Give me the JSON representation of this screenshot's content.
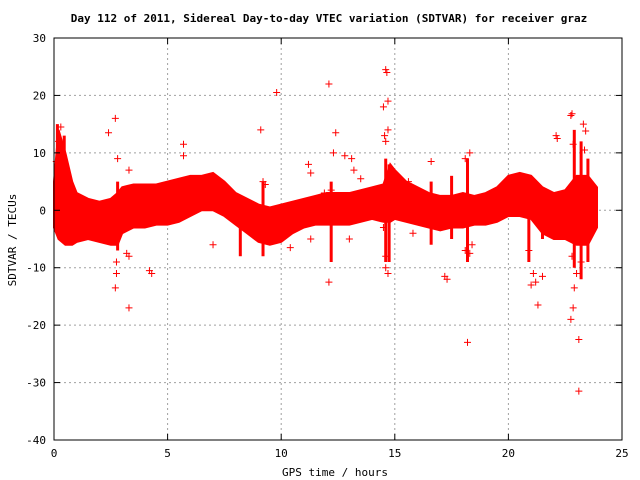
{
  "chart_data": {
    "type": "scatter",
    "title": "Day 112 of 2011, Sidereal Day-to-day VTEC variation (SDTVAR) for receiver graz",
    "xlabel": "GPS time / hours",
    "ylabel": "SDTVAR / TECUs",
    "xlim": [
      0,
      25
    ],
    "ylim": [
      -40,
      30
    ],
    "xticks": [
      0,
      5,
      10,
      15,
      20,
      25
    ],
    "yticks": [
      -40,
      -30,
      -20,
      -10,
      0,
      10,
      20,
      30
    ],
    "xtick_labels": [
      "0",
      "5",
      "10",
      "15",
      "20",
      "25"
    ],
    "ytick_labels": [
      "-40",
      "-30",
      "-20",
      "-10",
      "0",
      "10",
      "20",
      "30"
    ],
    "grid": true,
    "marker": "+",
    "color": "#ff0000",
    "band": {
      "x": [
        0.0,
        0.2,
        0.5,
        0.8,
        1.0,
        1.5,
        2.0,
        2.5,
        2.8,
        3.0,
        3.5,
        4.0,
        4.5,
        5.0,
        5.5,
        6.0,
        6.5,
        7.0,
        7.5,
        8.0,
        8.5,
        9.0,
        9.5,
        10.0,
        10.5,
        11.0,
        11.5,
        12.0,
        12.5,
        13.0,
        13.5,
        14.0,
        14.5,
        14.8,
        15.0,
        15.5,
        16.0,
        16.5,
        17.0,
        17.5,
        18.0,
        18.5,
        19.0,
        19.5,
        20.0,
        20.5,
        21.0,
        21.5,
        22.0,
        22.5,
        23.0,
        23.5,
        23.9
      ],
      "upper": [
        5,
        14,
        10,
        5,
        3,
        2,
        1.5,
        2,
        3,
        4,
        4.5,
        4.5,
        4.5,
        5,
        5.5,
        6,
        6,
        6.5,
        5,
        3,
        2,
        1,
        0.5,
        1,
        1.5,
        2,
        2.5,
        3,
        3,
        3,
        3.5,
        4,
        4.5,
        8,
        7,
        5,
        4,
        3,
        2.5,
        2.5,
        3,
        2.5,
        3,
        4,
        6,
        6.5,
        6,
        4,
        3,
        3.5,
        6,
        6,
        4
      ],
      "lower": [
        -3,
        -5,
        -6,
        -6,
        -5.5,
        -5,
        -5.5,
        -6,
        -6,
        -4,
        -3,
        -3,
        -2.5,
        -2.5,
        -2,
        -1,
        0,
        0,
        -1,
        -2.5,
        -4,
        -5.5,
        -6,
        -5.5,
        -4,
        -3,
        -2.5,
        -2.5,
        -2.5,
        -2.5,
        -2,
        -1.5,
        -2,
        -2,
        -1.5,
        -2,
        -2.5,
        -3,
        -3.5,
        -3,
        -3,
        -2.5,
        -2.5,
        -2,
        -1,
        -1,
        -1.5,
        -4,
        -5,
        -5,
        -6,
        -6,
        -3
      ]
    },
    "spikes": [
      {
        "x": 0.15,
        "top": 15,
        "bottom": -3
      },
      {
        "x": 0.45,
        "top": 13,
        "bottom": -4
      },
      {
        "x": 2.8,
        "top": 5,
        "bottom": -7
      },
      {
        "x": 8.2,
        "top": 2,
        "bottom": -8
      },
      {
        "x": 9.2,
        "top": 5,
        "bottom": -8
      },
      {
        "x": 12.2,
        "top": 5,
        "bottom": -9
      },
      {
        "x": 14.6,
        "top": 9,
        "bottom": -9
      },
      {
        "x": 14.75,
        "top": 8,
        "bottom": -9
      },
      {
        "x": 16.6,
        "top": 5,
        "bottom": -6
      },
      {
        "x": 17.5,
        "top": 6,
        "bottom": -5
      },
      {
        "x": 18.2,
        "top": 9,
        "bottom": -9
      },
      {
        "x": 20.9,
        "top": 5,
        "bottom": -9
      },
      {
        "x": 21.5,
        "top": 3,
        "bottom": -5
      },
      {
        "x": 22.9,
        "top": 14,
        "bottom": -10
      },
      {
        "x": 23.2,
        "top": 12,
        "bottom": -12
      },
      {
        "x": 23.5,
        "top": 9,
        "bottom": -9
      }
    ],
    "outliers": [
      [
        0.1,
        8.5
      ],
      [
        0.2,
        12
      ],
      [
        0.3,
        14.5
      ],
      [
        2.4,
        13.5
      ],
      [
        2.7,
        16
      ],
      [
        2.8,
        9
      ],
      [
        2.75,
        -9
      ],
      [
        2.75,
        -11
      ],
      [
        2.7,
        -13.5
      ],
      [
        3.3,
        7
      ],
      [
        3.2,
        -7.5
      ],
      [
        3.3,
        -8
      ],
      [
        3.3,
        -17
      ],
      [
        4.2,
        -10.5
      ],
      [
        4.3,
        -11
      ],
      [
        5.7,
        11.5
      ],
      [
        5.7,
        9.5
      ],
      [
        7.0,
        -6
      ],
      [
        9.1,
        14
      ],
      [
        9.2,
        5
      ],
      [
        9.3,
        4.5
      ],
      [
        9.8,
        20.5
      ],
      [
        10.4,
        -6.5
      ],
      [
        11.2,
        8
      ],
      [
        11.3,
        6.5
      ],
      [
        11.3,
        -5
      ],
      [
        11.9,
        3
      ],
      [
        12.1,
        22
      ],
      [
        12.2,
        3.5
      ],
      [
        12.3,
        10
      ],
      [
        12.4,
        13.5
      ],
      [
        12.1,
        -12.5
      ],
      [
        12.8,
        9.5
      ],
      [
        13.1,
        9
      ],
      [
        13.2,
        7
      ],
      [
        13.0,
        -5
      ],
      [
        13.5,
        5.5
      ],
      [
        13.8,
        2
      ],
      [
        14.5,
        18
      ],
      [
        14.6,
        24.5
      ],
      [
        14.65,
        24
      ],
      [
        14.7,
        19
      ],
      [
        14.55,
        13
      ],
      [
        14.6,
        12
      ],
      [
        14.7,
        14
      ],
      [
        14.5,
        -3
      ],
      [
        14.6,
        -10
      ],
      [
        14.7,
        -11
      ],
      [
        14.6,
        -8
      ],
      [
        15.6,
        5
      ],
      [
        15.8,
        -4
      ],
      [
        16.6,
        8.5
      ],
      [
        17.2,
        -11.5
      ],
      [
        17.3,
        -12
      ],
      [
        17.9,
        1
      ],
      [
        18.1,
        9
      ],
      [
        18.3,
        10
      ],
      [
        18.1,
        -7
      ],
      [
        18.2,
        -23
      ],
      [
        18.3,
        -7.5
      ],
      [
        18.4,
        -6
      ],
      [
        20.9,
        -7
      ],
      [
        21.0,
        -13
      ],
      [
        21.1,
        -11
      ],
      [
        21.2,
        -12.5
      ],
      [
        21.3,
        -16.5
      ],
      [
        21.5,
        -11.5
      ],
      [
        22.1,
        13
      ],
      [
        22.15,
        12.5
      ],
      [
        22.75,
        16.5
      ],
      [
        22.8,
        16.8
      ],
      [
        22.85,
        11.5
      ],
      [
        23.3,
        15
      ],
      [
        23.4,
        13.8
      ],
      [
        23.35,
        10.5
      ],
      [
        22.8,
        -8
      ],
      [
        22.85,
        -17
      ],
      [
        22.75,
        -19
      ],
      [
        22.9,
        -13.5
      ],
      [
        23.1,
        -22.5
      ],
      [
        23.1,
        -31.5
      ],
      [
        23.0,
        -11
      ],
      [
        23.2,
        -9
      ]
    ]
  }
}
